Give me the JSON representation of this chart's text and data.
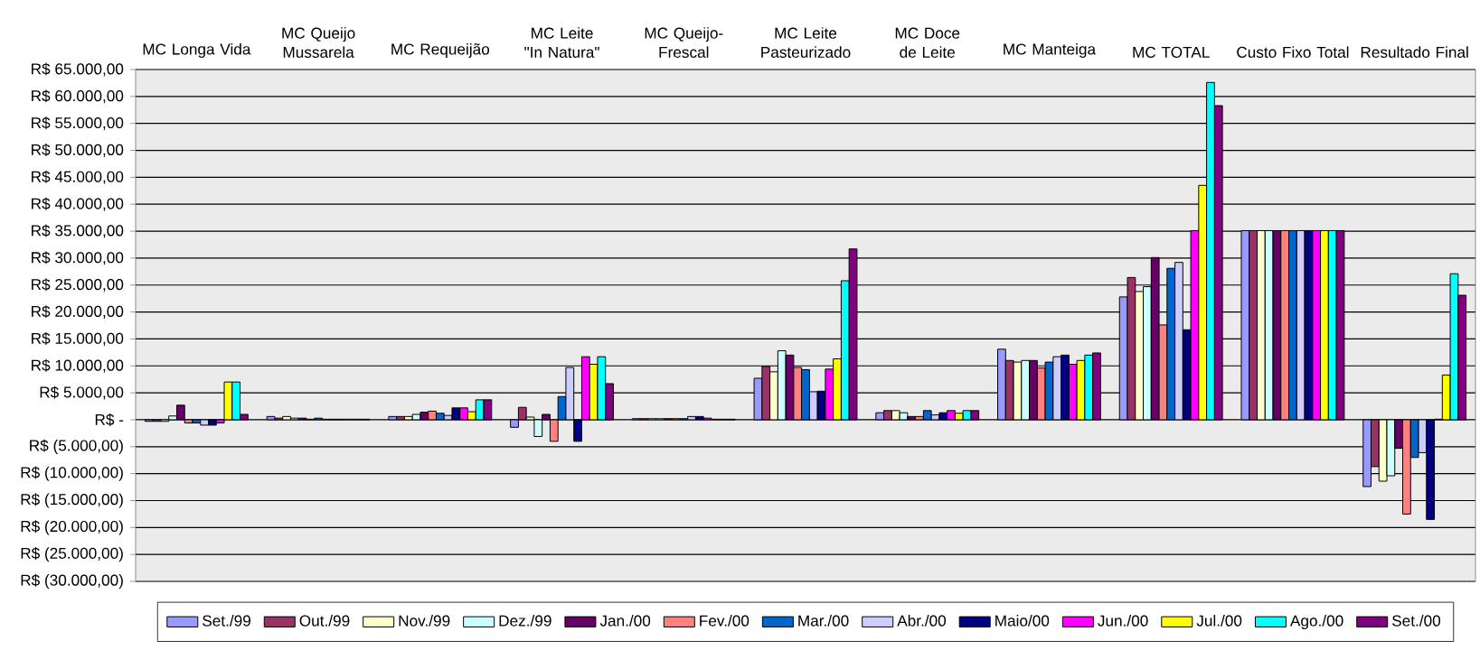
{
  "chart_data": {
    "type": "bar",
    "categories": [
      "MC Longa Vida",
      "MC Queijo Mussarela",
      "MC Requeijão",
      "MC Leite \"In Natura\"",
      "MC Queijo-Frescal",
      "MC Leite Pasteurizado",
      "MC Doce de Leite",
      "MC Manteiga",
      "MC TOTAL",
      "Custo Fixo Total",
      "Resultado Final"
    ],
    "series": [
      {
        "name": "Set./99",
        "color": "#9999ff",
        "values": [
          -300,
          600,
          600,
          -1400,
          200,
          7700,
          1300,
          13100,
          22800,
          35100,
          -12400
        ]
      },
      {
        "name": "Out./99",
        "color": "#993366",
        "values": [
          -300,
          300,
          600,
          2300,
          200,
          9900,
          1700,
          11000,
          26400,
          35100,
          -8700
        ]
      },
      {
        "name": "Nov./99",
        "color": "#ffffcc",
        "values": [
          -300,
          600,
          600,
          500,
          200,
          8900,
          1700,
          10700,
          23800,
          35100,
          -11400
        ]
      },
      {
        "name": "Dez./99",
        "color": "#ccffff",
        "values": [
          700,
          300,
          1000,
          -3100,
          200,
          12800,
          1300,
          11000,
          24700,
          35100,
          -10400
        ]
      },
      {
        "name": "Jan./00",
        "color": "#660066",
        "values": [
          2700,
          300,
          1400,
          1000,
          200,
          12000,
          600,
          11000,
          30100,
          35100,
          -5300
        ]
      },
      {
        "name": "Fev./00",
        "color": "#ff8080",
        "values": [
          -600,
          100,
          1600,
          -4000,
          200,
          9700,
          600,
          9600,
          17600,
          35100,
          -17500
        ]
      },
      {
        "name": "Mar./00",
        "color": "#0066cc",
        "values": [
          -600,
          300,
          1200,
          4300,
          200,
          9300,
          1700,
          10700,
          28100,
          35100,
          -7000
        ]
      },
      {
        "name": "Abr./00",
        "color": "#ccccff",
        "values": [
          -1000,
          100,
          800,
          9700,
          600,
          5200,
          900,
          11700,
          29200,
          35100,
          -6100
        ]
      },
      {
        "name": "Maio/00",
        "color": "#000080",
        "values": [
          -1000,
          100,
          2200,
          -4000,
          600,
          5300,
          1300,
          12000,
          16700,
          35100,
          -18500
        ]
      },
      {
        "name": "Jun./00",
        "color": "#ff00ff",
        "values": [
          -600,
          100,
          2200,
          11700,
          300,
          9400,
          1700,
          10300,
          35100,
          35100,
          100
        ]
      },
      {
        "name": "Jul./00",
        "color": "#ffff00",
        "values": [
          7000,
          100,
          1500,
          10300,
          100,
          11300,
          1200,
          11000,
          43500,
          35100,
          8300
        ]
      },
      {
        "name": "Ago./00",
        "color": "#00ffff",
        "values": [
          7000,
          100,
          3700,
          11700,
          100,
          25800,
          1700,
          12000,
          62600,
          35100,
          27100
        ]
      },
      {
        "name": "Set./00",
        "color": "#800080",
        "values": [
          1000,
          100,
          3700,
          6700,
          100,
          31700,
          1700,
          12400,
          58300,
          35100,
          23100
        ]
      }
    ],
    "ylim": [
      -30000,
      65000
    ],
    "yticks": [
      {
        "value": -30000,
        "label": "R$ (30.000,00)"
      },
      {
        "value": -25000,
        "label": "R$ (25.000,00)"
      },
      {
        "value": -20000,
        "label": "R$ (20.000,00)"
      },
      {
        "value": -15000,
        "label": "R$ (15.000,00)"
      },
      {
        "value": -10000,
        "label": "R$ (10.000,00)"
      },
      {
        "value": -5000,
        "label": "R$ (5.000,00)"
      },
      {
        "value": 0,
        "label": "R$ -"
      },
      {
        "value": 5000,
        "label": "R$ 5.000,00"
      },
      {
        "value": 10000,
        "label": "R$ 10.000,00"
      },
      {
        "value": 15000,
        "label": "R$ 15.000,00"
      },
      {
        "value": 20000,
        "label": "R$ 20.000,00"
      },
      {
        "value": 25000,
        "label": "R$ 25.000,00"
      },
      {
        "value": 30000,
        "label": "R$ 30.000,00"
      },
      {
        "value": 35000,
        "label": "R$ 35.000,00"
      },
      {
        "value": 40000,
        "label": "R$ 40.000,00"
      },
      {
        "value": 45000,
        "label": "R$ 45.000,00"
      },
      {
        "value": 50000,
        "label": "R$ 50.000,00"
      },
      {
        "value": 55000,
        "label": "R$ 55.000,00"
      },
      {
        "value": 60000,
        "label": "R$ 60.000,00"
      },
      {
        "value": 65000,
        "label": "R$ 65.000,00"
      }
    ],
    "grid": "y",
    "legend": "bottom"
  }
}
